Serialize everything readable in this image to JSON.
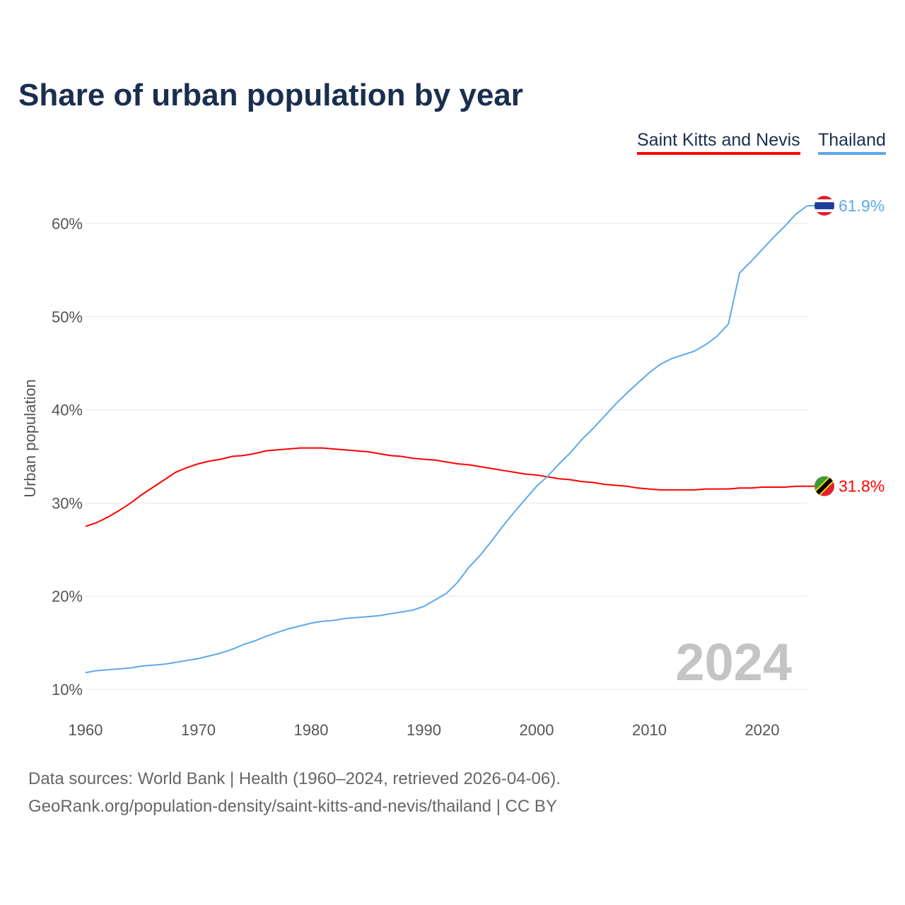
{
  "chart_data": {
    "type": "line",
    "title": "Share of urban population by year",
    "xlabel": "",
    "ylabel": "Urban population",
    "xlim": [
      1960,
      2024
    ],
    "ylim": [
      10,
      62
    ],
    "x_ticks": [
      1960,
      1970,
      1980,
      1990,
      2000,
      2010,
      2020
    ],
    "y_ticks": [
      10,
      20,
      30,
      40,
      50,
      60
    ],
    "y_tick_labels": [
      "10%",
      "20%",
      "30%",
      "40%",
      "50%",
      "60%"
    ],
    "grid": true,
    "legend_placement": "top-right",
    "watermark_year": "2024",
    "x": [
      1960,
      1961,
      1962,
      1963,
      1964,
      1965,
      1966,
      1967,
      1968,
      1969,
      1970,
      1971,
      1972,
      1973,
      1974,
      1975,
      1976,
      1977,
      1978,
      1979,
      1980,
      1981,
      1982,
      1983,
      1984,
      1985,
      1986,
      1987,
      1988,
      1989,
      1990,
      1991,
      1992,
      1993,
      1994,
      1995,
      1996,
      1997,
      1998,
      1999,
      2000,
      2001,
      2002,
      2003,
      2004,
      2005,
      2006,
      2007,
      2008,
      2009,
      2010,
      2011,
      2012,
      2013,
      2014,
      2015,
      2016,
      2017,
      2018,
      2019,
      2020,
      2021,
      2022,
      2023,
      2024
    ],
    "series": [
      {
        "name": "Saint Kitts and Nevis",
        "color": "#ff0000",
        "end_label": "31.8%",
        "values": [
          27.5,
          27.9,
          28.5,
          29.2,
          30.0,
          30.9,
          31.7,
          32.5,
          33.3,
          33.8,
          34.2,
          34.5,
          34.7,
          35.0,
          35.1,
          35.3,
          35.6,
          35.7,
          35.8,
          35.9,
          35.9,
          35.9,
          35.8,
          35.7,
          35.6,
          35.5,
          35.3,
          35.1,
          35.0,
          34.8,
          34.7,
          34.6,
          34.4,
          34.2,
          34.1,
          33.9,
          33.7,
          33.5,
          33.3,
          33.1,
          33.0,
          32.8,
          32.6,
          32.5,
          32.3,
          32.2,
          32.0,
          31.9,
          31.8,
          31.6,
          31.5,
          31.4,
          31.4,
          31.4,
          31.4,
          31.5,
          31.5,
          31.5,
          31.6,
          31.6,
          31.7,
          31.7,
          31.7,
          31.8,
          31.8
        ]
      },
      {
        "name": "Thailand",
        "color": "#5ea8ea",
        "end_label": "61.9%",
        "values": [
          11.8,
          12.0,
          12.1,
          12.2,
          12.3,
          12.5,
          12.6,
          12.7,
          12.9,
          13.1,
          13.3,
          13.6,
          13.9,
          14.3,
          14.8,
          15.2,
          15.7,
          16.1,
          16.5,
          16.8,
          17.1,
          17.3,
          17.4,
          17.6,
          17.7,
          17.8,
          17.9,
          18.1,
          18.3,
          18.5,
          18.9,
          19.6,
          20.3,
          21.5,
          23.1,
          24.4,
          25.9,
          27.5,
          29.0,
          30.4,
          31.8,
          32.9,
          34.2,
          35.4,
          36.8,
          38.0,
          39.3,
          40.6,
          41.8,
          42.9,
          44.0,
          44.9,
          45.5,
          45.9,
          46.3,
          47.0,
          47.9,
          49.2,
          54.7,
          55.9,
          57.2,
          58.5,
          59.7,
          61.0,
          61.9
        ]
      }
    ]
  },
  "footer": {
    "line1": "Data sources: World Bank | Health (1960–2024, retrieved 2026-04-06).",
    "line2": "GeoRank.org/population-density/saint-kitts-and-nevis/thailand | CC BY"
  }
}
